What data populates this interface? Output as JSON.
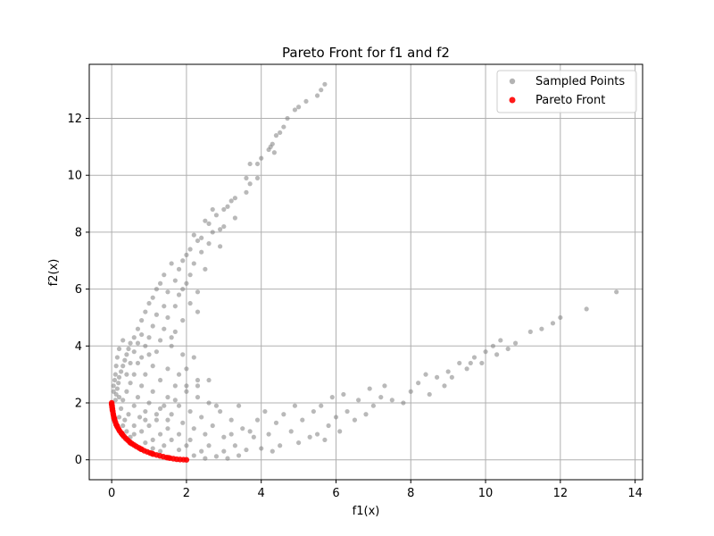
{
  "chart_data": {
    "type": "scatter",
    "title": "Pareto Front for f1 and f2",
    "xlabel": "f1(x)",
    "ylabel": "f2(x)",
    "xlim": [
      -0.6,
      14.2
    ],
    "ylim": [
      -0.7,
      13.9
    ],
    "xticks": [
      0,
      2,
      4,
      6,
      8,
      10,
      12,
      14
    ],
    "yticks": [
      0,
      2,
      4,
      6,
      8,
      10,
      12
    ],
    "grid": true,
    "legend_position": "top-right",
    "series": [
      {
        "name": "Sampled Points",
        "color": "#808080",
        "opacity": 0.55,
        "marker": "circle",
        "points": [
          [
            5.7,
            13.2
          ],
          [
            5.6,
            13.0
          ],
          [
            5.5,
            12.8
          ],
          [
            5.2,
            12.6
          ],
          [
            5.0,
            12.4
          ],
          [
            4.9,
            12.3
          ],
          [
            4.7,
            12.0
          ],
          [
            4.6,
            11.7
          ],
          [
            4.5,
            11.5
          ],
          [
            4.4,
            11.4
          ],
          [
            4.3,
            11.1
          ],
          [
            4.25,
            11.0
          ],
          [
            4.2,
            10.9
          ],
          [
            4.35,
            10.8
          ],
          [
            4.0,
            10.6
          ],
          [
            3.7,
            10.4
          ],
          [
            3.9,
            10.4
          ],
          [
            3.6,
            9.9
          ],
          [
            3.9,
            9.9
          ],
          [
            3.7,
            9.7
          ],
          [
            3.6,
            9.4
          ],
          [
            3.3,
            9.2
          ],
          [
            3.2,
            9.1
          ],
          [
            3.1,
            8.9
          ],
          [
            3.0,
            8.8
          ],
          [
            2.7,
            8.8
          ],
          [
            2.8,
            8.6
          ],
          [
            3.3,
            8.5
          ],
          [
            2.5,
            8.4
          ],
          [
            2.6,
            8.3
          ],
          [
            2.9,
            8.1
          ],
          [
            3.0,
            8.2
          ],
          [
            2.7,
            8.0
          ],
          [
            2.4,
            7.8
          ],
          [
            2.2,
            7.9
          ],
          [
            2.3,
            7.7
          ],
          [
            2.6,
            7.6
          ],
          [
            2.9,
            7.5
          ],
          [
            2.1,
            7.4
          ],
          [
            2.4,
            7.3
          ],
          [
            2.0,
            7.2
          ],
          [
            1.9,
            7.0
          ],
          [
            2.2,
            6.9
          ],
          [
            1.8,
            6.7
          ],
          [
            1.6,
            6.9
          ],
          [
            2.5,
            6.7
          ],
          [
            2.1,
            6.5
          ],
          [
            1.4,
            6.5
          ],
          [
            1.7,
            6.3
          ],
          [
            2.0,
            6.2
          ],
          [
            1.3,
            6.2
          ],
          [
            1.2,
            6.0
          ],
          [
            1.5,
            5.9
          ],
          [
            1.8,
            5.8
          ],
          [
            2.3,
            5.9
          ],
          [
            1.1,
            5.7
          ],
          [
            1.0,
            5.5
          ],
          [
            1.4,
            5.4
          ],
          [
            1.7,
            5.4
          ],
          [
            2.1,
            5.5
          ],
          [
            0.9,
            5.2
          ],
          [
            1.2,
            5.1
          ],
          [
            1.5,
            5.0
          ],
          [
            0.8,
            4.9
          ],
          [
            1.9,
            4.9
          ],
          [
            1.1,
            4.7
          ],
          [
            1.4,
            4.6
          ],
          [
            0.7,
            4.6
          ],
          [
            1.7,
            4.5
          ],
          [
            0.6,
            4.3
          ],
          [
            1.0,
            4.3
          ],
          [
            1.3,
            4.2
          ],
          [
            0.5,
            4.1
          ],
          [
            0.9,
            4.0
          ],
          [
            1.6,
            4.0
          ],
          [
            0.45,
            3.9
          ],
          [
            1.2,
            3.8
          ],
          [
            0.4,
            3.7
          ],
          [
            0.8,
            3.6
          ],
          [
            1.9,
            3.7
          ],
          [
            0.35,
            3.5
          ],
          [
            0.7,
            3.4
          ],
          [
            1.1,
            3.3
          ],
          [
            0.3,
            3.3
          ],
          [
            1.5,
            3.2
          ],
          [
            0.25,
            3.1
          ],
          [
            0.6,
            3.0
          ],
          [
            0.9,
            3.0
          ],
          [
            0.2,
            2.9
          ],
          [
            1.3,
            2.8
          ],
          [
            0.5,
            2.7
          ],
          [
            0.18,
            2.7
          ],
          [
            0.8,
            2.6
          ],
          [
            1.7,
            2.6
          ],
          [
            0.15,
            2.5
          ],
          [
            0.4,
            2.4
          ],
          [
            1.1,
            2.4
          ],
          [
            2.0,
            2.4
          ],
          [
            0.12,
            2.3
          ],
          [
            0.7,
            2.2
          ],
          [
            1.5,
            2.2
          ],
          [
            0.3,
            2.1
          ],
          [
            2.3,
            2.2
          ],
          [
            0.1,
            2.1
          ],
          [
            1.0,
            2.0
          ],
          [
            0.6,
            1.9
          ],
          [
            1.8,
            1.9
          ],
          [
            2.6,
            2.0
          ],
          [
            0.25,
            1.8
          ],
          [
            1.3,
            1.8
          ],
          [
            0.9,
            1.7
          ],
          [
            2.1,
            1.7
          ],
          [
            0.45,
            1.6
          ],
          [
            1.6,
            1.6
          ],
          [
            2.9,
            1.7
          ],
          [
            0.75,
            1.5
          ],
          [
            1.2,
            1.4
          ],
          [
            2.4,
            1.5
          ],
          [
            0.35,
            1.4
          ],
          [
            1.9,
            1.3
          ],
          [
            3.2,
            1.4
          ],
          [
            0.6,
            1.2
          ],
          [
            1.0,
            1.2
          ],
          [
            2.2,
            1.1
          ],
          [
            1.5,
            1.1
          ],
          [
            2.7,
            1.2
          ],
          [
            0.8,
            1.0
          ],
          [
            3.5,
            1.1
          ],
          [
            1.3,
            0.9
          ],
          [
            1.8,
            0.9
          ],
          [
            2.5,
            0.9
          ],
          [
            3.0,
            0.8
          ],
          [
            1.1,
            0.7
          ],
          [
            1.6,
            0.7
          ],
          [
            2.1,
            0.7
          ],
          [
            3.8,
            0.8
          ],
          [
            1.4,
            0.5
          ],
          [
            2.0,
            0.5
          ],
          [
            2.6,
            0.5
          ],
          [
            3.3,
            0.5
          ],
          [
            1.8,
            0.35
          ],
          [
            2.4,
            0.3
          ],
          [
            3.0,
            0.3
          ],
          [
            3.6,
            0.35
          ],
          [
            2.2,
            0.15
          ],
          [
            2.8,
            0.12
          ],
          [
            3.4,
            0.15
          ],
          [
            2.5,
            0.05
          ],
          [
            3.1,
            0.05
          ],
          [
            4.0,
            0.4
          ],
          [
            4.5,
            0.5
          ],
          [
            5.0,
            0.6
          ],
          [
            4.2,
            0.9
          ],
          [
            4.8,
            1.0
          ],
          [
            5.5,
            0.9
          ],
          [
            4.4,
            1.3
          ],
          [
            5.1,
            1.4
          ],
          [
            5.8,
            1.2
          ],
          [
            4.6,
            1.6
          ],
          [
            5.4,
            1.7
          ],
          [
            6.0,
            1.5
          ],
          [
            4.9,
            1.9
          ],
          [
            5.6,
            1.9
          ],
          [
            6.3,
            1.7
          ],
          [
            6.5,
            1.4
          ],
          [
            6.8,
            1.6
          ],
          [
            5.9,
            2.2
          ],
          [
            6.2,
            2.3
          ],
          [
            6.6,
            2.1
          ],
          [
            7.0,
            1.9
          ],
          [
            7.2,
            2.2
          ],
          [
            6.9,
            2.5
          ],
          [
            7.5,
            2.1
          ],
          [
            7.8,
            2.0
          ],
          [
            7.3,
            2.6
          ],
          [
            8.0,
            2.4
          ],
          [
            8.2,
            2.7
          ],
          [
            8.5,
            2.3
          ],
          [
            8.4,
            3.0
          ],
          [
            8.7,
            2.9
          ],
          [
            8.9,
            2.6
          ],
          [
            9.0,
            3.1
          ],
          [
            9.3,
            3.4
          ],
          [
            9.1,
            2.9
          ],
          [
            9.5,
            3.2
          ],
          [
            9.7,
            3.6
          ],
          [
            9.9,
            3.4
          ],
          [
            10.0,
            3.8
          ],
          [
            10.2,
            4.0
          ],
          [
            10.4,
            4.2
          ],
          [
            10.6,
            3.9
          ],
          [
            10.8,
            4.1
          ],
          [
            11.2,
            4.5
          ],
          [
            11.5,
            4.6
          ],
          [
            11.8,
            4.8
          ],
          [
            12.0,
            5.0
          ],
          [
            12.7,
            5.3
          ],
          [
            13.5,
            5.9
          ],
          [
            10.3,
            3.7
          ],
          [
            9.6,
            3.4
          ],
          [
            0.05,
            2.6
          ],
          [
            0.08,
            2.8
          ],
          [
            0.1,
            3.0
          ],
          [
            0.12,
            3.3
          ],
          [
            0.15,
            3.6
          ],
          [
            0.2,
            3.9
          ],
          [
            0.3,
            4.2
          ],
          [
            0.05,
            2.4
          ],
          [
            0.4,
            3.0
          ],
          [
            0.5,
            3.4
          ],
          [
            0.6,
            3.8
          ],
          [
            0.7,
            4.1
          ],
          [
            0.2,
            1.5
          ],
          [
            0.3,
            1.2
          ],
          [
            0.4,
            1.0
          ],
          [
            0.5,
            0.8
          ],
          [
            0.6,
            0.9
          ],
          [
            0.9,
            1.4
          ],
          [
            1.2,
            1.6
          ],
          [
            1.4,
            1.9
          ],
          [
            1.7,
            2.1
          ],
          [
            2.0,
            2.6
          ],
          [
            2.3,
            2.8
          ],
          [
            0.2,
            2.2
          ],
          [
            2.2,
            3.6
          ],
          [
            2.0,
            3.2
          ],
          [
            1.8,
            3.0
          ],
          [
            1.6,
            4.3
          ],
          [
            1.0,
            3.7
          ],
          [
            0.8,
            4.4
          ],
          [
            2.3,
            5.2
          ],
          [
            1.9,
            6.0
          ],
          [
            3.2,
            0.9
          ],
          [
            3.7,
            1.0
          ],
          [
            4.1,
            1.7
          ],
          [
            4.3,
            0.3
          ],
          [
            5.3,
            0.8
          ],
          [
            5.7,
            0.7
          ],
          [
            6.1,
            1.0
          ],
          [
            3.9,
            1.4
          ],
          [
            2.8,
            1.9
          ],
          [
            3.4,
            1.9
          ],
          [
            2.6,
            2.8
          ],
          [
            2.3,
            2.6
          ],
          [
            1.1,
            0.4
          ],
          [
            1.3,
            0.3
          ],
          [
            0.9,
            0.6
          ],
          [
            1.5,
            1.4
          ]
        ]
      },
      {
        "name": "Pareto Front",
        "color": "#ff0000",
        "opacity": 0.9,
        "marker": "circle",
        "points": [
          [
            0.0,
            2.0
          ],
          [
            0.0,
            1.95
          ],
          [
            0.01,
            1.9
          ],
          [
            0.01,
            1.85
          ],
          [
            0.02,
            1.8
          ],
          [
            0.02,
            1.75
          ],
          [
            0.03,
            1.7
          ],
          [
            0.04,
            1.62
          ],
          [
            0.05,
            1.55
          ],
          [
            0.06,
            1.48
          ],
          [
            0.08,
            1.4
          ],
          [
            0.1,
            1.32
          ],
          [
            0.12,
            1.24
          ],
          [
            0.15,
            1.16
          ],
          [
            0.18,
            1.09
          ],
          [
            0.21,
            1.02
          ],
          [
            0.25,
            0.95
          ],
          [
            0.29,
            0.88
          ],
          [
            0.33,
            0.82
          ],
          [
            0.38,
            0.75
          ],
          [
            0.43,
            0.69
          ],
          [
            0.48,
            0.63
          ],
          [
            0.54,
            0.57
          ],
          [
            0.6,
            0.52
          ],
          [
            0.66,
            0.47
          ],
          [
            0.73,
            0.42
          ],
          [
            0.8,
            0.37
          ],
          [
            0.87,
            0.32
          ],
          [
            0.95,
            0.28
          ],
          [
            1.03,
            0.24
          ],
          [
            1.11,
            0.2
          ],
          [
            1.2,
            0.17
          ],
          [
            1.29,
            0.14
          ],
          [
            1.38,
            0.11
          ],
          [
            1.47,
            0.08
          ],
          [
            1.56,
            0.06
          ],
          [
            1.65,
            0.04
          ],
          [
            1.74,
            0.02
          ],
          [
            1.83,
            0.01
          ],
          [
            1.92,
            0.005
          ],
          [
            2.0,
            0.0
          ],
          [
            0.07,
            1.45
          ],
          [
            0.14,
            1.2
          ],
          [
            0.27,
            0.92
          ],
          [
            0.5,
            0.6
          ],
          [
            0.78,
            0.38
          ],
          [
            1.08,
            0.22
          ],
          [
            1.52,
            0.07
          ]
        ]
      }
    ]
  }
}
